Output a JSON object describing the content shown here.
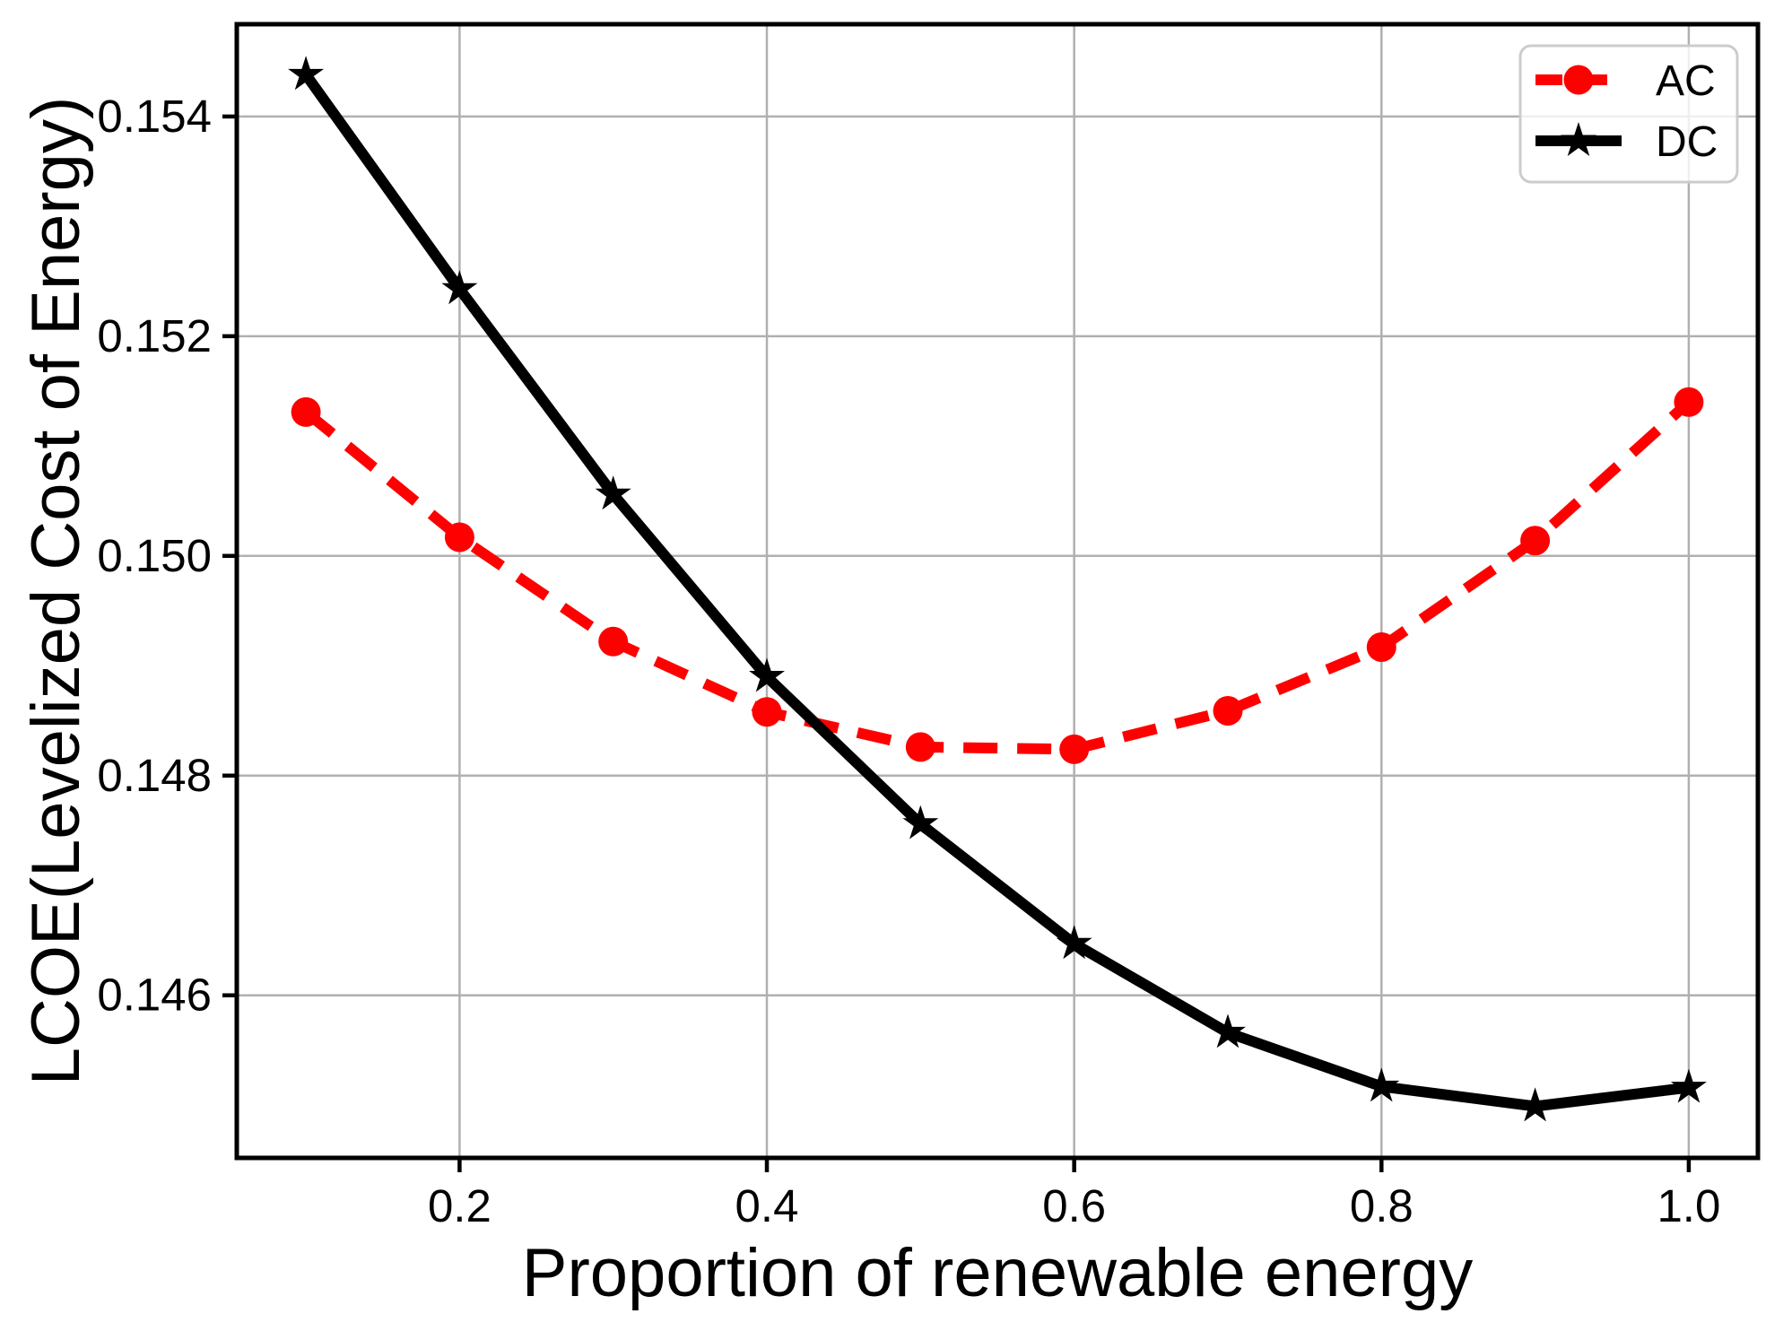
{
  "chart_data": {
    "type": "line",
    "title": "",
    "xlabel": "Proportion of renewable energy",
    "ylabel": "LCOE(Levelized Cost of Energy)",
    "x": [
      0.1,
      0.2,
      0.3,
      0.4,
      0.5,
      0.6,
      0.7,
      0.8,
      0.9,
      1.0
    ],
    "series": [
      {
        "name": "AC",
        "color": "#ff0000",
        "linestyle": "dashed",
        "marker": "circle",
        "values": [
          0.15131,
          0.15017,
          0.14922,
          0.14858,
          0.14826,
          0.14824,
          0.14859,
          0.14917,
          0.15014,
          0.1514
        ]
      },
      {
        "name": "DC",
        "color": "#000000",
        "linestyle": "solid",
        "marker": "star",
        "values": [
          0.15438,
          0.15243,
          0.15056,
          0.1489,
          0.14756,
          0.14647,
          0.14566,
          0.14517,
          0.14499,
          0.14516
        ]
      }
    ],
    "xlim": [
      0.055,
      1.045
    ],
    "ylim": [
      0.14452,
      0.15484
    ],
    "xticks": [
      0.2,
      0.4,
      0.6,
      0.8,
      1.0
    ],
    "xtick_labels": [
      "0.2",
      "0.4",
      "0.6",
      "0.8",
      "1.0"
    ],
    "yticks": [
      0.146,
      0.148,
      0.15,
      0.152,
      0.154
    ],
    "ytick_labels": [
      "0.146",
      "0.148",
      "0.150",
      "0.152",
      "0.154"
    ],
    "grid": true,
    "grid_color": "#b0b0b0",
    "legend": {
      "position": "upper right",
      "entries": [
        "AC",
        "DC"
      ]
    }
  },
  "style": {
    "background": "#ffffff",
    "spine_color": "#000000",
    "tick_color": "#000000",
    "text_color": "#000000",
    "legend_border_color": "#cccccc",
    "ac_color": "#ff0000",
    "dc_color": "#000000"
  }
}
